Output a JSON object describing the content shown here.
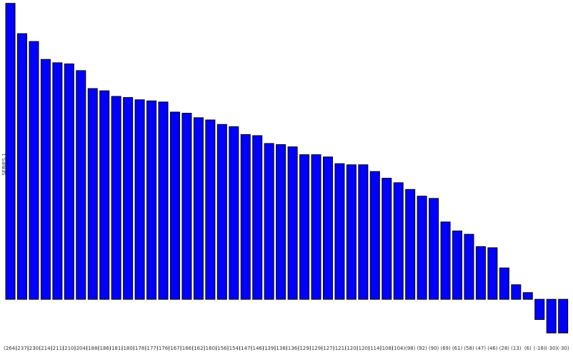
{
  "chart_data": {
    "type": "bar",
    "y_label": "SERIES 1",
    "values": [
      264,
      237,
      230,
      214,
      211,
      210,
      204,
      188,
      186,
      181,
      180,
      178,
      177,
      176,
      167,
      166,
      162,
      160,
      156,
      154,
      147,
      146,
      139,
      138,
      136,
      129,
      129,
      127,
      121,
      120,
      120,
      114,
      108,
      104,
      98,
      92,
      90,
      69,
      61,
      58,
      47,
      46,
      28,
      13,
      6,
      -18,
      -30,
      -30
    ],
    "value_labels": [
      "(264)",
      "(237)",
      "(230)",
      "(214)",
      "(211)",
      "(210)",
      "(204)",
      "(188)",
      "(186)",
      "(181)",
      "(180)",
      "(178)",
      "(177)",
      "(176)",
      "(167)",
      "(166)",
      "(162)",
      "(160)",
      "(156)",
      "(154)",
      "(147)",
      "(146)",
      "(139)",
      "(138)",
      "(136)",
      "(129)",
      "(129)",
      "(127)",
      "(121)",
      "(120)",
      "(120)",
      "(114)",
      "(108)",
      "(104)",
      "(98)",
      "(92)",
      "(90)",
      "(69)",
      "(61)",
      "(58)",
      "(47)",
      "(46)",
      "(28)",
      "(13)",
      "(6)",
      "(-18)",
      "(-30)",
      "(-30)"
    ],
    "color": "#0000ff",
    "ylim": [
      -40,
      267
    ]
  }
}
